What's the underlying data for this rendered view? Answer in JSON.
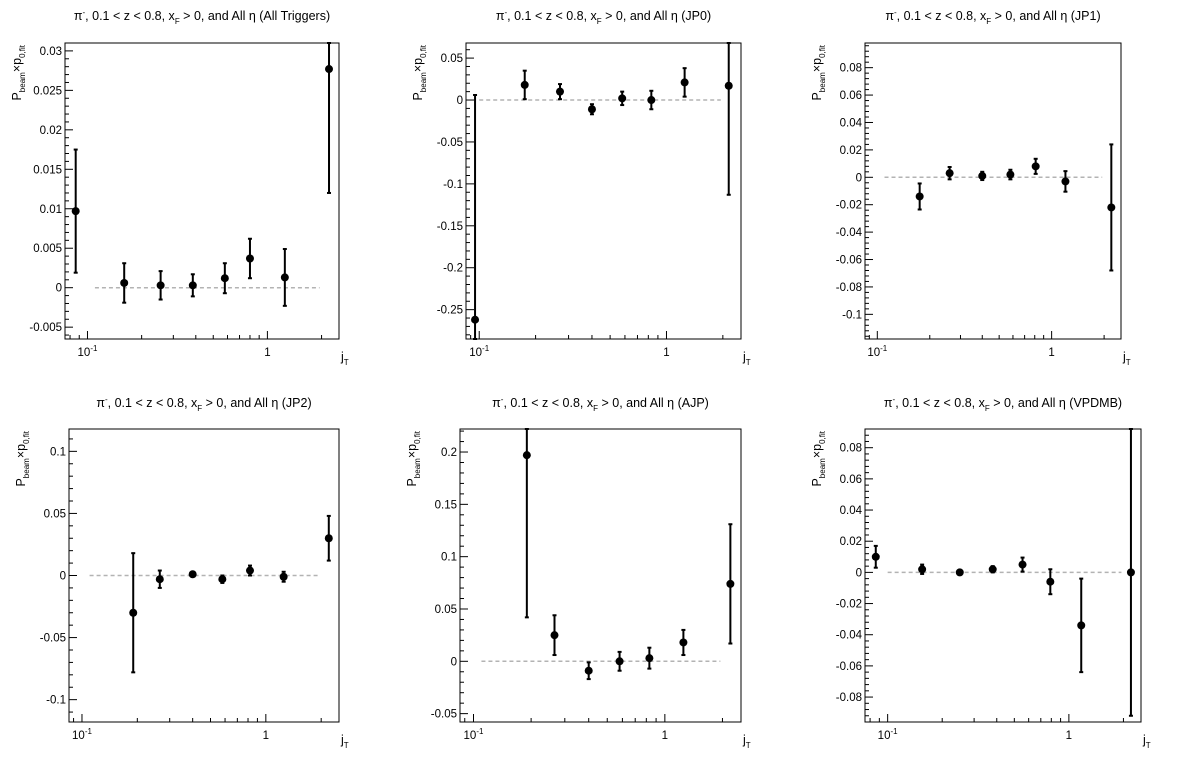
{
  "chart_data": [
    {
      "type": "scatter",
      "title": "π⁻, 0.1 < z < 0.8, x_F > 0, and All η (All Triggers)",
      "title_parts": {
        "pre": "π",
        "sup": "-",
        "mid": ", 0.1 < z < 0.8, x",
        "sub": "F",
        "post": " > 0, and All η (All Triggers)"
      },
      "xlabel": {
        "main": "j",
        "sub": "T"
      },
      "ylabel": {
        "main": "P",
        "sub1": "beam",
        "mid": "×p",
        "sub2": "0,fit"
      },
      "x_scale": "log",
      "xlim": [
        0.075,
        2.5
      ],
      "ylim": [
        -0.0065,
        0.031
      ],
      "xticks": [
        {
          "v": 0.1,
          "label": "10",
          "sup": "-1"
        },
        {
          "v": 1,
          "label": "1",
          "sup": ""
        }
      ],
      "yticks": [
        {
          "v": -0.005,
          "label": "-0.005"
        },
        {
          "v": 0,
          "label": "0"
        },
        {
          "v": 0.005,
          "label": "0.005"
        },
        {
          "v": 0.01,
          "label": "0.01"
        },
        {
          "v": 0.015,
          "label": "0.015"
        },
        {
          "v": 0.02,
          "label": "0.02"
        },
        {
          "v": 0.025,
          "label": "0.025"
        },
        {
          "v": 0.03,
          "label": "0.03"
        }
      ],
      "zero_line": [
        0.11,
        1.95
      ],
      "points": [
        {
          "x": 0.086,
          "y": 0.0097,
          "err": 0.0078
        },
        {
          "x": 0.16,
          "y": 0.0006,
          "err": 0.0025
        },
        {
          "x": 0.255,
          "y": 0.0003,
          "err": 0.0018
        },
        {
          "x": 0.385,
          "y": 0.0003,
          "err": 0.0014
        },
        {
          "x": 0.58,
          "y": 0.0012,
          "err": 0.0019
        },
        {
          "x": 0.8,
          "y": 0.0037,
          "err": 0.0025
        },
        {
          "x": 1.25,
          "y": 0.0013,
          "err": 0.0036
        },
        {
          "x": 2.2,
          "y": 0.0277,
          "err": 0.0157
        }
      ]
    },
    {
      "type": "scatter",
      "title": "π⁻, 0.1 < z < 0.8, x_F > 0, and All η (JP0)",
      "title_parts": {
        "pre": "π",
        "sup": "-",
        "mid": ", 0.1 < z < 0.8, x",
        "sub": "F",
        "post": " > 0, and All η (JP0)"
      },
      "xlabel": {
        "main": "j",
        "sub": "T"
      },
      "ylabel": {
        "main": "P",
        "sub1": "beam",
        "mid": "×p",
        "sub2": "0,fit"
      },
      "x_scale": "log",
      "xlim": [
        0.085,
        2.5
      ],
      "ylim": [
        -0.285,
        0.068
      ],
      "xticks": [
        {
          "v": 0.1,
          "label": "10",
          "sup": "-1"
        },
        {
          "v": 1,
          "label": "1",
          "sup": ""
        }
      ],
      "yticks": [
        {
          "v": -0.25,
          "label": "-0.25"
        },
        {
          "v": -0.2,
          "label": "-0.2"
        },
        {
          "v": -0.15,
          "label": "-0.15"
        },
        {
          "v": -0.1,
          "label": "-0.1"
        },
        {
          "v": -0.05,
          "label": "-0.05"
        },
        {
          "v": 0,
          "label": "0"
        },
        {
          "v": 0.05,
          "label": "0.05"
        }
      ],
      "zero_line": [
        0.1,
        1.95
      ],
      "points": [
        {
          "x": 0.095,
          "y": -0.262,
          "err": 0.268
        },
        {
          "x": 0.175,
          "y": 0.018,
          "err": 0.017
        },
        {
          "x": 0.27,
          "y": 0.01,
          "err": 0.009
        },
        {
          "x": 0.4,
          "y": -0.011,
          "err": 0.006
        },
        {
          "x": 0.58,
          "y": 0.002,
          "err": 0.008
        },
        {
          "x": 0.83,
          "y": 0.0,
          "err": 0.011
        },
        {
          "x": 1.25,
          "y": 0.021,
          "err": 0.017
        },
        {
          "x": 2.15,
          "y": 0.017,
          "err": 0.13
        }
      ]
    },
    {
      "type": "scatter",
      "title": "π⁻, 0.1 < z < 0.8, x_F > 0, and All η (JP1)",
      "title_parts": {
        "pre": "π",
        "sup": "-",
        "mid": ", 0.1 < z < 0.8, x",
        "sub": "F",
        "post": " > 0, and All η (JP1)"
      },
      "xlabel": {
        "main": "j",
        "sub": "T"
      },
      "ylabel": {
        "main": "P",
        "sub1": "beam",
        "mid": "×p",
        "sub2": "0,fit"
      },
      "x_scale": "log",
      "xlim": [
        0.085,
        2.5
      ],
      "ylim": [
        -0.118,
        0.098
      ],
      "xticks": [
        {
          "v": 0.1,
          "label": "10",
          "sup": "-1"
        },
        {
          "v": 1,
          "label": "1",
          "sup": ""
        }
      ],
      "yticks": [
        {
          "v": -0.1,
          "label": "-0.1"
        },
        {
          "v": -0.08,
          "label": "-0.08"
        },
        {
          "v": -0.06,
          "label": "-0.06"
        },
        {
          "v": -0.04,
          "label": "-0.04"
        },
        {
          "v": -0.02,
          "label": "-0.02"
        },
        {
          "v": 0,
          "label": "0"
        },
        {
          "v": 0.02,
          "label": "0.02"
        },
        {
          "v": 0.04,
          "label": "0.04"
        },
        {
          "v": 0.06,
          "label": "0.06"
        },
        {
          "v": 0.08,
          "label": "0.08"
        }
      ],
      "zero_line": [
        0.11,
        1.95
      ],
      "points": [
        {
          "x": 0.175,
          "y": -0.014,
          "err": 0.0095
        },
        {
          "x": 0.26,
          "y": 0.003,
          "err": 0.0045
        },
        {
          "x": 0.4,
          "y": 0.001,
          "err": 0.003
        },
        {
          "x": 0.58,
          "y": 0.002,
          "err": 0.0035
        },
        {
          "x": 0.81,
          "y": 0.008,
          "err": 0.0055
        },
        {
          "x": 1.2,
          "y": -0.003,
          "err": 0.0075
        },
        {
          "x": 2.2,
          "y": -0.022,
          "err": 0.046
        }
      ]
    },
    {
      "type": "scatter",
      "title": "π⁻, 0.1 < z < 0.8, x_F > 0, and All η (JP2)",
      "title_parts": {
        "pre": "π",
        "sup": "-",
        "mid": ", 0.1 < z < 0.8, x",
        "sub": "F",
        "post": " > 0, and All η (JP2)"
      },
      "xlabel": {
        "main": "j",
        "sub": "T"
      },
      "ylabel": {
        "main": "P",
        "sub1": "beam",
        "mid": "×p",
        "sub2": "0,fit"
      },
      "x_scale": "log",
      "xlim": [
        0.085,
        2.5
      ],
      "ylim": [
        -0.118,
        0.118
      ],
      "xticks": [
        {
          "v": 0.1,
          "label": "10",
          "sup": "-1"
        },
        {
          "v": 1,
          "label": "1",
          "sup": ""
        }
      ],
      "yticks": [
        {
          "v": -0.1,
          "label": "-0.1"
        },
        {
          "v": -0.05,
          "label": "-0.05"
        },
        {
          "v": 0,
          "label": "0"
        },
        {
          "v": 0.05,
          "label": "0.05"
        },
        {
          "v": 0.1,
          "label": "0.1"
        }
      ],
      "zero_line": [
        0.11,
        1.95
      ],
      "points": [
        {
          "x": 0.19,
          "y": -0.03,
          "err": 0.048
        },
        {
          "x": 0.265,
          "y": -0.003,
          "err": 0.007
        },
        {
          "x": 0.4,
          "y": 0.001,
          "err": 0.0015
        },
        {
          "x": 0.58,
          "y": -0.003,
          "err": 0.003
        },
        {
          "x": 0.82,
          "y": 0.004,
          "err": 0.004
        },
        {
          "x": 1.25,
          "y": -0.001,
          "err": 0.004
        },
        {
          "x": 2.2,
          "y": 0.03,
          "err": 0.018
        }
      ]
    },
    {
      "type": "scatter",
      "title": "π⁻, 0.1 < z < 0.8, x_F > 0, and All η (AJP)",
      "title_parts": {
        "pre": "π",
        "sup": "-",
        "mid": ", 0.1 < z < 0.8, x",
        "sub": "F",
        "post": " > 0, and All η (AJP)"
      },
      "xlabel": {
        "main": "j",
        "sub": "T"
      },
      "ylabel": {
        "main": "P",
        "sub1": "beam",
        "mid": "×p",
        "sub2": "0,fit"
      },
      "x_scale": "log",
      "xlim": [
        0.085,
        2.5
      ],
      "ylim": [
        -0.058,
        0.222
      ],
      "xticks": [
        {
          "v": 0.1,
          "label": "10",
          "sup": "-1"
        },
        {
          "v": 1,
          "label": "1",
          "sup": ""
        }
      ],
      "yticks": [
        {
          "v": -0.05,
          "label": "-0.05"
        },
        {
          "v": 0,
          "label": "0"
        },
        {
          "v": 0.05,
          "label": "0.05"
        },
        {
          "v": 0.1,
          "label": "0.1"
        },
        {
          "v": 0.15,
          "label": "0.15"
        },
        {
          "v": 0.2,
          "label": "0.2"
        }
      ],
      "zero_line": [
        0.11,
        1.95
      ],
      "points": [
        {
          "x": 0.19,
          "y": 0.197,
          "err": 0.155
        },
        {
          "x": 0.265,
          "y": 0.025,
          "err": 0.019
        },
        {
          "x": 0.4,
          "y": -0.009,
          "err": 0.008
        },
        {
          "x": 0.58,
          "y": 0.0,
          "err": 0.009
        },
        {
          "x": 0.83,
          "y": 0.003,
          "err": 0.01
        },
        {
          "x": 1.25,
          "y": 0.018,
          "err": 0.012
        },
        {
          "x": 2.2,
          "y": 0.074,
          "err": 0.057
        }
      ]
    },
    {
      "type": "scatter",
      "title": "π⁻, 0.1 < z < 0.8, x_F > 0, and All η (VPDMB)",
      "title_parts": {
        "pre": "π",
        "sup": "-",
        "mid": ", 0.1 < z < 0.8, x",
        "sub": "F",
        "post": " > 0, and All η (VPDMB)"
      },
      "xlabel": {
        "main": "j",
        "sub": "T"
      },
      "ylabel": {
        "main": "P",
        "sub1": "beam",
        "mid": "×p",
        "sub2": "0,fit"
      },
      "x_scale": "log",
      "xlim": [
        0.075,
        2.5
      ],
      "ylim": [
        -0.096,
        0.092
      ],
      "xticks": [
        {
          "v": 0.1,
          "label": "10",
          "sup": "-1"
        },
        {
          "v": 1,
          "label": "1",
          "sup": ""
        }
      ],
      "yticks": [
        {
          "v": -0.08,
          "label": "-0.08"
        },
        {
          "v": -0.06,
          "label": "-0.06"
        },
        {
          "v": -0.04,
          "label": "-0.04"
        },
        {
          "v": -0.02,
          "label": "-0.02"
        },
        {
          "v": 0,
          "label": "0"
        },
        {
          "v": 0.02,
          "label": "0.02"
        },
        {
          "v": 0.04,
          "label": "0.04"
        },
        {
          "v": 0.06,
          "label": "0.06"
        },
        {
          "v": 0.08,
          "label": "0.08"
        }
      ],
      "zero_line": [
        0.1,
        1.95
      ],
      "points": [
        {
          "x": 0.086,
          "y": 0.01,
          "err": 0.007
        },
        {
          "x": 0.155,
          "y": 0.002,
          "err": 0.003
        },
        {
          "x": 0.25,
          "y": 0.0,
          "err": 0.0015
        },
        {
          "x": 0.38,
          "y": 0.002,
          "err": 0.002
        },
        {
          "x": 0.555,
          "y": 0.005,
          "err": 0.0045
        },
        {
          "x": 0.79,
          "y": -0.006,
          "err": 0.008
        },
        {
          "x": 1.17,
          "y": -0.034,
          "err": 0.03
        },
        {
          "x": 2.2,
          "y": 0.0,
          "err": 0.092
        }
      ]
    }
  ]
}
